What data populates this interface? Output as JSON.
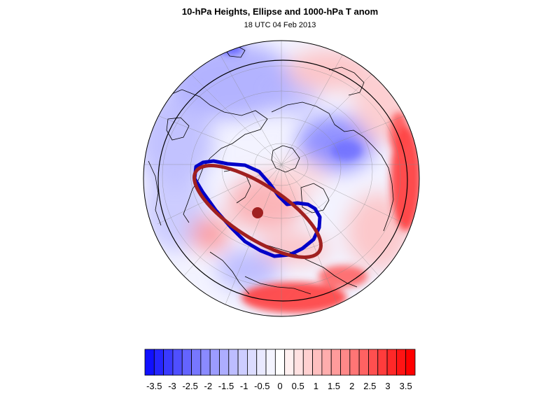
{
  "title": "10-hPa Heights, Ellipse and 1000-hPa T anom",
  "subtitle": "18 UTC 04 Feb 2013",
  "map": {
    "projection": "orthographic-polar",
    "field": "1000-hPa T anom",
    "overlays": [
      "10-hPa height contour",
      "ellipse",
      "ellipse centroid",
      "coastlines",
      "lat-lon grid"
    ],
    "contour_color": "#0000c8",
    "ellipse_color": "#a02020",
    "centroid_color": "#a02020"
  },
  "colorbar": {
    "levels": [
      -3.5,
      -3.25,
      -3,
      -2.75,
      -2.5,
      -2.25,
      -2,
      -1.75,
      -1.5,
      -1.25,
      -1,
      -0.75,
      -0.5,
      -0.25,
      0,
      0.25,
      0.5,
      0.75,
      1,
      1.25,
      1.5,
      1.75,
      2,
      2.25,
      2.5,
      2.75,
      3,
      3.25,
      3.5
    ],
    "tick_labels": [
      "-3.5",
      "-3",
      "-2.5",
      "-2",
      "-1.5",
      "-1",
      "-0.5",
      "0",
      "0.5",
      "1",
      "1.5",
      "2",
      "2.5",
      "3",
      "3.5"
    ],
    "colors": [
      "#1010ff",
      "#2525ff",
      "#3a3aff",
      "#4f4fff",
      "#6464ff",
      "#7777ff",
      "#8a8aff",
      "#9c9cff",
      "#adadff",
      "#bdbdff",
      "#cdcdff",
      "#dcdcff",
      "#e9e9ff",
      "#f4f4ff",
      "#ffffff",
      "#fff0f0",
      "#ffe1e1",
      "#ffd0d0",
      "#ffbfbf",
      "#ffadad",
      "#ff9b9b",
      "#ff8888",
      "#ff7575",
      "#ff6262",
      "#ff4f4f",
      "#ff3c3c",
      "#ff2828",
      "#ff1414",
      "#ff0000"
    ]
  }
}
